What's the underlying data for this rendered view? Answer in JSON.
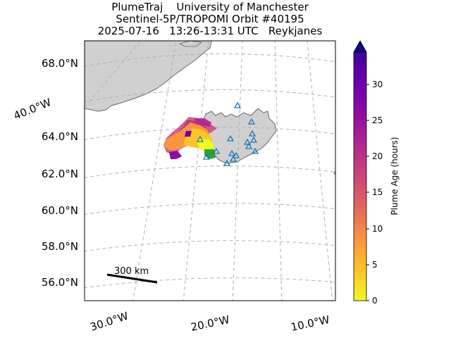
{
  "title": {
    "line1": "PlumeTraj    University of Manchester",
    "line2": "Sentinel-5P/TROPOMI Orbit #40195",
    "line3": "2025-07-16   13:26-13:31 UTC   Reykjanes"
  },
  "map": {
    "lat_labels": [
      "68.0°N",
      "64.0°N",
      "62.0°N",
      "60.0°N",
      "58.0°N",
      "56.0°N"
    ],
    "lon_labels": [
      "30.0°W",
      "20.0°W",
      "10.0°W"
    ],
    "side_lon_label": "40.0°W",
    "scale_bar_label": "300 km",
    "land_color": "#d0d0d0",
    "coast_color": "#666666",
    "grid_color": "#b0b0b0",
    "volcano_marker_color": "#1f77b4",
    "ground_station_color": "#2ca02c"
  },
  "colorbar": {
    "label": "Plume Age (hours)",
    "ticks": [
      "0",
      "5",
      "10",
      "15",
      "20",
      "25",
      "30"
    ],
    "min": 0,
    "max": 34,
    "colormap": "plasma_r",
    "extend": "max"
  }
}
